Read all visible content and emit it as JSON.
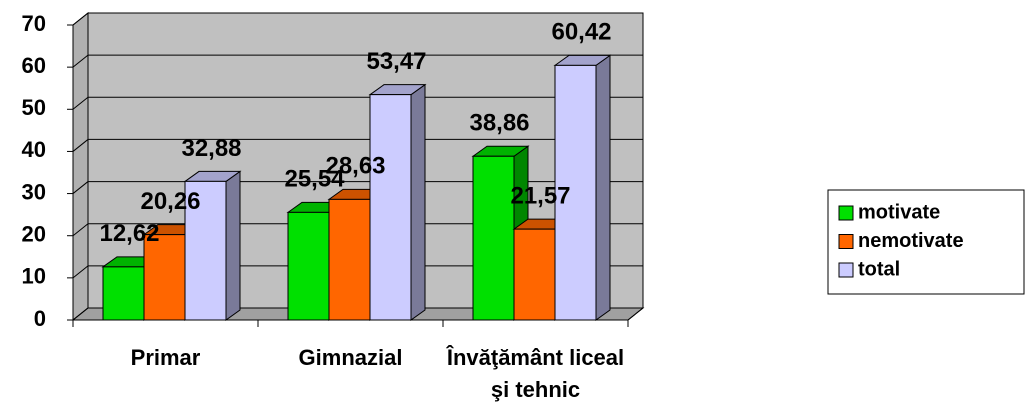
{
  "chart_data": {
    "type": "bar3d",
    "categories": [
      "Primar",
      "Gimnazial",
      "Învăţământ liceal şi tehnic"
    ],
    "series": [
      {
        "name": "motivate",
        "color": "#00e000",
        "values": [
          12.62,
          25.54,
          38.86
        ],
        "value_labels": [
          "12,62",
          "25,54",
          "38,86"
        ]
      },
      {
        "name": "nemotivate",
        "color": "#ff6600",
        "values": [
          20.26,
          28.63,
          21.57
        ],
        "value_labels": [
          "20,26",
          "28,63",
          "21,57"
        ]
      },
      {
        "name": "total",
        "color": "#ccccff",
        "values": [
          32.88,
          53.47,
          60.42
        ],
        "value_labels": [
          "32,88",
          "53,47",
          "60,42"
        ]
      }
    ],
    "ylim": [
      0,
      70
    ],
    "yticks": [
      0,
      10,
      20,
      30,
      40,
      50,
      60,
      70
    ],
    "grid": true,
    "legend": "right"
  }
}
